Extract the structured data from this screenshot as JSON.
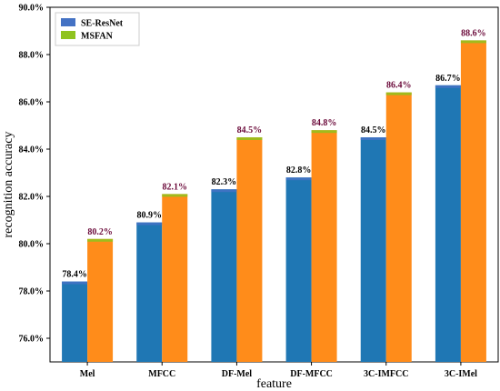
{
  "chart_data": {
    "type": "bar",
    "xlabel": "feature",
    "ylabel": "recognition accuracy",
    "ylim": [
      75.0,
      90.0
    ],
    "yticks": [
      76.0,
      78.0,
      80.0,
      82.0,
      84.0,
      86.0,
      88.0,
      90.0
    ],
    "ytick_labels": [
      "76.0%",
      "78.0%",
      "80.0%",
      "82.0%",
      "84.0%",
      "86.0%",
      "88.0%",
      "90.0%"
    ],
    "categories": [
      "Mel",
      "MFCC",
      "DF-Mel",
      "DF-MFCC",
      "3C-IMFCC",
      "3C-IMel"
    ],
    "series": [
      {
        "name": "SE-ResNet",
        "values": [
          78.4,
          80.9,
          82.3,
          82.8,
          84.5,
          86.7
        ],
        "labels": [
          "78.4%",
          "80.9%",
          "82.3%",
          "82.8%",
          "84.5%",
          "86.7%"
        ],
        "color": "#1f77b4",
        "legend_color": "#4472c4",
        "label_color": "#000000"
      },
      {
        "name": "MSFAN",
        "values": [
          80.2,
          82.1,
          84.5,
          84.8,
          86.4,
          88.6
        ],
        "labels": [
          "80.2%",
          "82.1%",
          "84.5%",
          "84.8%",
          "86.4%",
          "88.6%"
        ],
        "color": "#ff8c1a",
        "legend_color": "#8fc31f",
        "label_color": "#6b0a3a"
      }
    ],
    "legend_position": "top-left",
    "grid": false
  }
}
